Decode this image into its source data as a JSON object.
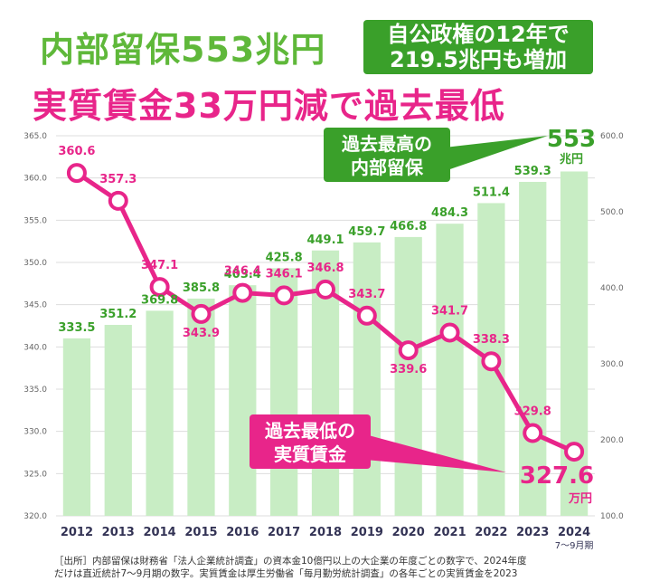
{
  "header": {
    "title": "内部留保553兆円",
    "boxLine1": "自公政権の12年で",
    "boxLine2": "219.5兆円も増加",
    "subtitle": "実質賃金33万円減で過去最低"
  },
  "callouts": {
    "highLine1": "過去最高の",
    "highLine2": "内部留保",
    "highValue": "553",
    "highUnit": "兆円",
    "lowLine1": "過去最低の",
    "lowLine2": "実質賃金",
    "lowValue": "327.6",
    "lowUnit": "万円"
  },
  "source": {
    "line1": "［出所］内部留保は財務省「法人企業統計調査」の資本金10億円以上の大企業の年度ごとの数字で、2024年度",
    "line2": "だけは直近統計7～9月期の数字。実質賃金は厚生労働省「毎月勤労統計調査」の各年ごとの実質賃金を2023"
  },
  "colors": {
    "bar": "#c8edc4",
    "line": "#e8258a",
    "barLabel": "#3aa02a",
    "lineLabel": "#e8258a",
    "box": "#3aa02a"
  },
  "chart_data": {
    "type": "bar+line",
    "categories": [
      "2012",
      "2013",
      "2014",
      "2015",
      "2016",
      "2017",
      "2018",
      "2019",
      "2020",
      "2021",
      "2022",
      "2023",
      "2024"
    ],
    "categoryNote": "7～9月期",
    "series": [
      {
        "name": "内部留保",
        "type": "bar",
        "axis": "right",
        "values": [
          333.5,
          351.2,
          369.8,
          385.8,
          403.4,
          425.8,
          449.1,
          459.7,
          466.8,
          484.3,
          511.4,
          539.3,
          553
        ],
        "labels": [
          "333.5",
          "351.2",
          "369.8",
          "385.8",
          "403.4",
          "425.8",
          "449.1",
          "459.7",
          "466.8",
          "484.3",
          "511.4",
          "539.3",
          ""
        ]
      },
      {
        "name": "実質賃金",
        "type": "line",
        "axis": "left",
        "values": [
          360.6,
          357.3,
          347.1,
          343.9,
          346.4,
          346.1,
          346.8,
          343.7,
          339.6,
          341.7,
          338.3,
          329.8,
          327.6
        ],
        "labels": [
          "360.6",
          "357.3",
          "347.1",
          "343.9",
          "346.4",
          "346.1",
          "346.8",
          "343.7",
          "339.6",
          "341.7",
          "338.3",
          "329.8",
          ""
        ]
      }
    ],
    "leftAxis": {
      "min": 320,
      "max": 365,
      "ticks": [
        "320.0",
        "325.0",
        "330.0",
        "335.0",
        "340.0",
        "345.0",
        "350.0",
        "355.0",
        "360.0",
        "365.0"
      ]
    },
    "rightAxis": {
      "min": 100,
      "max": 600,
      "ticks": [
        "100.0",
        "200.0",
        "300.0",
        "400.0",
        "500.0",
        "600.0"
      ]
    },
    "grid": true
  }
}
